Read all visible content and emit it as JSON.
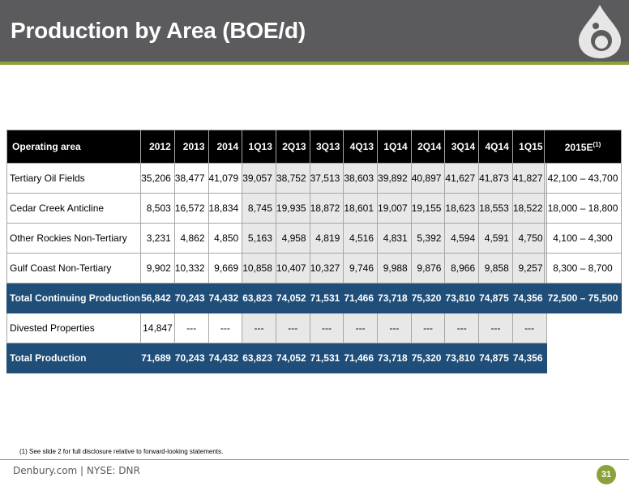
{
  "title": "Production by Area (BOE/d)",
  "colors": {
    "header_bg": "#5b5b5d",
    "accent": "#8aa23a",
    "total_row": "#1f4e79",
    "highlight_col": "#e8e8e8"
  },
  "table": {
    "headers": [
      "Operating area",
      "2012",
      "2013",
      "2014",
      "1Q13",
      "2Q13",
      "3Q13",
      "4Q13",
      "1Q14",
      "2Q14",
      "3Q14",
      "4Q14",
      "1Q15"
    ],
    "rows": [
      {
        "label": "Tertiary Oil Fields",
        "values": [
          "35,206",
          "38,477",
          "41,079",
          "39,057",
          "38,752",
          "37,513",
          "38,603",
          "39,892",
          "40,897",
          "41,627",
          "41,873",
          "41,827"
        ]
      },
      {
        "label": "Cedar Creek Anticline",
        "values": [
          "8,503",
          "16,572",
          "18,834",
          "8,745",
          "19,935",
          "18,872",
          "18,601",
          "19,007",
          "19,155",
          "18,623",
          "18,553",
          "18,522"
        ]
      },
      {
        "label": "Other Rockies Non-Tertiary",
        "values": [
          "3,231",
          "4,862",
          "4,850",
          "5,163",
          "4,958",
          "4,819",
          "4,516",
          "4,831",
          "5,392",
          "4,594",
          "4,591",
          "4,750"
        ]
      },
      {
        "label": "Gulf Coast Non-Tertiary",
        "values": [
          "9,902",
          "10,332",
          "9,669",
          "10,858",
          "10,407",
          "10,327",
          "9,746",
          "9,988",
          "9,876",
          "8,966",
          "9,858",
          "9,257"
        ]
      },
      {
        "label": "Total Continuing Production",
        "values": [
          "56,842",
          "70,243",
          "74,432",
          "63,823",
          "74,052",
          "71,531",
          "71,466",
          "73,718",
          "75,320",
          "73,810",
          "74,875",
          "74,356"
        ]
      },
      {
        "label": "Divested Properties",
        "values": [
          "14,847",
          "---",
          "---",
          "---",
          "---",
          "---",
          "---",
          "---",
          "---",
          "---",
          "---",
          "---"
        ]
      },
      {
        "label": "Total Production",
        "values": [
          "71,689",
          "70,243",
          "74,432",
          "63,823",
          "74,052",
          "71,531",
          "71,466",
          "73,718",
          "75,320",
          "73,810",
          "74,875",
          "74,356"
        ]
      }
    ]
  },
  "estimate": {
    "header": "2015E",
    "header_sup": "(1)",
    "values": [
      "42,100 – 43,700",
      "18,000 – 18,800",
      "4,100 – 4,300",
      "8,300 – 8,700",
      "72,500 – 75,500"
    ]
  },
  "footnote": "(1) See slide 2 for full disclosure relative to forward-looking statements.",
  "footer": {
    "text": "Denbury.com | NYSE: DNR",
    "page": "31"
  }
}
